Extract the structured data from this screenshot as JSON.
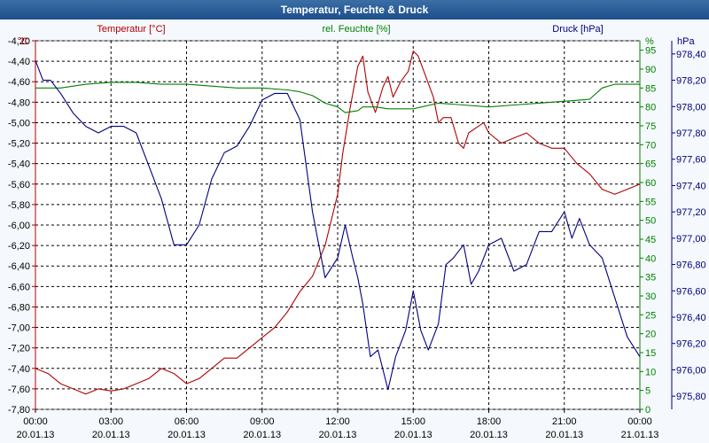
{
  "title": "Temperatur, Feuchte & Druck",
  "chart_data": {
    "type": "line",
    "title": "Temperatur, Feuchte & Druck",
    "x_ticks": [
      {
        "time": "00:00",
        "date": "20.01.13",
        "hour": 0
      },
      {
        "time": "03:00",
        "date": "20.01.13",
        "hour": 3
      },
      {
        "time": "06:00",
        "date": "20.01.13",
        "hour": 6
      },
      {
        "time": "09:00",
        "date": "20.01.13",
        "hour": 9
      },
      {
        "time": "12:00",
        "date": "20.01.13",
        "hour": 12
      },
      {
        "time": "15:00",
        "date": "20.01.13",
        "hour": 15
      },
      {
        "time": "18:00",
        "date": "20.01.13",
        "hour": 18
      },
      {
        "time": "21:00",
        "date": "20.01.13",
        "hour": 21
      },
      {
        "time": "00:00",
        "date": "21.01.13",
        "hour": 24
      }
    ],
    "xlim": [
      0,
      24
    ],
    "axes": {
      "temperature": {
        "label": "Temperatur [°C]",
        "unit": "°C",
        "color": "#b00000",
        "ylim": [
          -7.8,
          -4.2
        ],
        "ticks": [
          "-4,20",
          "-4,40",
          "-4,60",
          "-4,80",
          "-5,00",
          "-5,20",
          "-5,40",
          "-5,60",
          "-5,80",
          "-6,00",
          "-6,20",
          "-6,40",
          "-6,60",
          "-6,80",
          "-7,00",
          "-7,20",
          "-7,40",
          "-7,60",
          "-7,80"
        ]
      },
      "humidity": {
        "label": "rel. Feuchte [%]",
        "unit": "%",
        "color": "#008000",
        "ylim": [
          0,
          97.5
        ],
        "ticks": [
          "95",
          "90",
          "85",
          "80",
          "75",
          "70",
          "65",
          "60",
          "55",
          "50",
          "45",
          "40",
          "35",
          "30",
          "25",
          "20",
          "15",
          "10",
          "5",
          "0"
        ]
      },
      "pressure": {
        "label": "Druck [hPa]",
        "unit": "hPa",
        "color": "#000080",
        "ylim": [
          975.7,
          978.5
        ],
        "ticks": [
          "978,40",
          "978,20",
          "978,00",
          "977,80",
          "977,60",
          "977,40",
          "977,20",
          "977,00",
          "976,80",
          "976,60",
          "976,40",
          "976,20",
          "976,00",
          "975,80"
        ]
      }
    },
    "series": [
      {
        "name": "Temperatur [°C]",
        "axis": "temperature",
        "color": "#b00000",
        "x": [
          0,
          0.5,
          1,
          1.5,
          2,
          2.5,
          3,
          3.5,
          4,
          4.5,
          5,
          5.5,
          6,
          6.5,
          7,
          7.5,
          8,
          8.5,
          9,
          9.5,
          10,
          10.5,
          11,
          11.5,
          12,
          12.2,
          12.5,
          12.8,
          13,
          13.2,
          13.5,
          13.8,
          14,
          14.2,
          14.5,
          14.8,
          15,
          15.2,
          15.5,
          15.8,
          16,
          16.2,
          16.5,
          16.8,
          17,
          17.2,
          17.5,
          17.8,
          18,
          18.5,
          19,
          19.5,
          20,
          20.5,
          21,
          21.5,
          22,
          22.5,
          23,
          23.5,
          24
        ],
        "y": [
          -7.4,
          -7.45,
          -7.55,
          -7.6,
          -7.65,
          -7.6,
          -7.62,
          -7.6,
          -7.55,
          -7.5,
          -7.4,
          -7.45,
          -7.55,
          -7.5,
          -7.4,
          -7.3,
          -7.3,
          -7.2,
          -7.1,
          -7.0,
          -6.85,
          -6.65,
          -6.5,
          -6.2,
          -5.7,
          -5.3,
          -4.85,
          -4.45,
          -4.35,
          -4.7,
          -4.9,
          -4.65,
          -4.55,
          -4.75,
          -4.6,
          -4.5,
          -4.3,
          -4.35,
          -4.55,
          -4.75,
          -5.0,
          -4.95,
          -4.95,
          -5.2,
          -5.25,
          -5.1,
          -5.05,
          -5.0,
          -5.1,
          -5.2,
          -5.15,
          -5.1,
          -5.2,
          -5.25,
          -5.25,
          -5.4,
          -5.5,
          -5.65,
          -5.7,
          -5.65,
          -5.6
        ]
      },
      {
        "name": "rel. Feuchte [%]",
        "axis": "humidity",
        "color": "#008000",
        "x": [
          0,
          1,
          2,
          3,
          4,
          5,
          6,
          7,
          8,
          9,
          10,
          10.5,
          11,
          11.5,
          12,
          12.3,
          12.8,
          13,
          13.5,
          14,
          15,
          16,
          17,
          18,
          19,
          20,
          21,
          22,
          22.5,
          23,
          24
        ],
        "y": [
          85,
          85,
          86,
          86.5,
          86.5,
          86,
          86,
          85.5,
          85,
          85,
          84.5,
          84,
          83,
          81,
          80,
          78.5,
          79,
          80,
          80,
          79.5,
          79.5,
          81,
          80.5,
          80,
          80.5,
          81,
          81.5,
          82,
          85,
          86,
          86
        ]
      },
      {
        "name": "Druck [hPa]",
        "axis": "pressure",
        "color": "#000080",
        "x": [
          0,
          0.3,
          0.6,
          1,
          1.5,
          2,
          2.5,
          3,
          3.5,
          4,
          4.5,
          5,
          5.5,
          6,
          6.5,
          7,
          7.5,
          8,
          8.5,
          9,
          9.5,
          10,
          10.5,
          11,
          11.5,
          12,
          12.3,
          12.6,
          12.8,
          13,
          13.3,
          13.6,
          14,
          14.3,
          14.7,
          15,
          15.3,
          15.6,
          16,
          16.3,
          16.6,
          17,
          17.3,
          17.6,
          18,
          18.5,
          19,
          19.5,
          20,
          20.5,
          21,
          21.3,
          21.6,
          22,
          22.5,
          23,
          23.5,
          24
        ],
        "y": [
          978.35,
          978.2,
          978.2,
          978.1,
          977.95,
          977.85,
          977.8,
          977.85,
          977.85,
          977.8,
          977.55,
          977.3,
          976.95,
          976.95,
          977.1,
          977.45,
          977.65,
          977.7,
          977.85,
          978.05,
          978.1,
          978.1,
          977.9,
          977.2,
          976.7,
          976.85,
          977.1,
          976.85,
          976.7,
          976.5,
          976.1,
          976.15,
          975.85,
          976.1,
          976.3,
          976.6,
          976.3,
          976.15,
          976.35,
          976.8,
          976.85,
          976.95,
          976.65,
          976.75,
          976.95,
          977.0,
          976.75,
          976.8,
          977.05,
          977.05,
          977.2,
          977.0,
          977.15,
          976.95,
          976.85,
          976.55,
          976.25,
          976.1
        ]
      }
    ]
  }
}
